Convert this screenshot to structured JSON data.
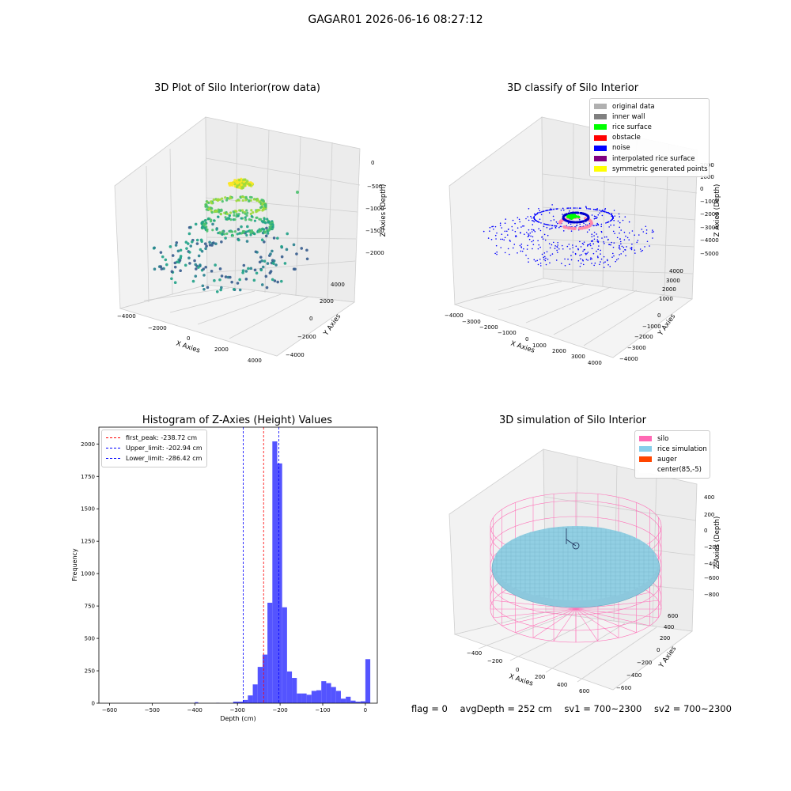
{
  "title": "GAGAR01 2026-06-16 08:27:12",
  "chart_data": [
    {
      "type": "scatter",
      "title": "3D Plot of Silo Interior(row data)",
      "xlabel": "X Axies",
      "ylabel": "Y Axies",
      "zlabel": "Z Axies (Depth)",
      "xticks": [
        "−4000",
        "−2000",
        "0",
        "2000",
        "4000"
      ],
      "yticks": [
        "−4000",
        "−2000",
        "0",
        "2000",
        "4000"
      ],
      "zticks": [
        "0",
        "−500",
        "−1000",
        "−1500",
        "−2000"
      ],
      "colormap": "viridis"
    },
    {
      "type": "scatter",
      "title": "3D classify of Silo Interior",
      "xlabel": "X Axies",
      "ylabel": "Y Axies",
      "zlabel": "Z Axies (Depth)",
      "xticks": [
        "−4000",
        "−3000",
        "−2000",
        "−1000",
        "0",
        "1000",
        "2000",
        "3000",
        "4000"
      ],
      "yticks": [
        "−4000",
        "−3000",
        "−2000",
        "−1000",
        "0",
        "1000",
        "2000",
        "3000",
        "4000"
      ],
      "zticks": [
        "2000",
        "1000",
        "0",
        "−1000",
        "−2000",
        "−3000",
        "−4000",
        "−5000"
      ],
      "legend": [
        {
          "label": "original data",
          "color": "#b0b0b0"
        },
        {
          "label": "inner wall",
          "color": "#808080"
        },
        {
          "label": "rice surface",
          "color": "#00ff00"
        },
        {
          "label": "obstacle",
          "color": "#ff0000"
        },
        {
          "label": "noise",
          "color": "#0000ff"
        },
        {
          "label": "interpolated rice surface",
          "color": "#800080"
        },
        {
          "label": "symmetric generated points",
          "color": "#ffff00"
        }
      ]
    },
    {
      "type": "bar",
      "title": "Histogram of Z-Axies (Height) Values",
      "xlabel": "Depth (cm)",
      "ylabel": "Frequency",
      "xlim": [
        -625,
        28
      ],
      "ylim": [
        0,
        2130
      ],
      "xticks": [
        -600,
        -500,
        -400,
        -300,
        -200,
        -100,
        0
      ],
      "xtick_labels": [
        "−600",
        "−500",
        "−400",
        "−300",
        "−200",
        "−100",
        "0"
      ],
      "yticks": [
        0,
        250,
        500,
        750,
        1000,
        1250,
        1500,
        1750,
        2000
      ],
      "bar_color": "#4b4bff",
      "bin_width": 8,
      "bins": [
        {
          "x": -400,
          "v": 8
        },
        {
          "x": -350,
          "v": 3
        },
        {
          "x": -326,
          "v": 12
        },
        {
          "x": -318,
          "v": 12
        },
        {
          "x": -310,
          "v": 25
        },
        {
          "x": -302,
          "v": 60
        },
        {
          "x": -294,
          "v": 145
        },
        {
          "x": -286,
          "v": 280
        },
        {
          "x": -278,
          "v": 375
        },
        {
          "x": -270,
          "v": 775
        },
        {
          "x": -262,
          "v": 2020
        },
        {
          "x": -254,
          "v": 1850
        },
        {
          "x": -246,
          "v": 740
        },
        {
          "x": -238,
          "v": 245
        },
        {
          "x": -230,
          "v": 195
        },
        {
          "x": -222,
          "v": 75
        },
        {
          "x": -214,
          "v": 75
        },
        {
          "x": -206,
          "v": 65
        },
        {
          "x": -198,
          "v": 95
        },
        {
          "x": -190,
          "v": 100
        },
        {
          "x": -182,
          "v": 170
        },
        {
          "x": -174,
          "v": 155
        },
        {
          "x": -166,
          "v": 125
        },
        {
          "x": -158,
          "v": 95
        },
        {
          "x": -150,
          "v": 35
        },
        {
          "x": -142,
          "v": 50
        },
        {
          "x": -134,
          "v": 20
        },
        {
          "x": -126,
          "v": 12
        },
        {
          "x": -118,
          "v": 15
        },
        {
          "x": -110,
          "v": 340
        }
      ],
      "vlines": [
        {
          "label": "first_peak: -238.72 cm",
          "x": -238.72,
          "color": "#ff0000"
        },
        {
          "label": "Upper_limit: -202.94 cm",
          "x": -202.94,
          "color": "#0000ff"
        },
        {
          "label": "Lower_limit: -286.42 cm",
          "x": -286.42,
          "color": "#0000ff"
        }
      ]
    },
    {
      "type": "scatter",
      "title": "3D simulation of Silo Interior",
      "xlabel": "X Axies",
      "ylabel": "Y Axies",
      "zlabel": "Z Axies (Depth)",
      "xticks": [
        "−400",
        "−200",
        "0",
        "200",
        "400",
        "600"
      ],
      "yticks": [
        "−600",
        "−400",
        "−200",
        "0",
        "200",
        "400",
        "600"
      ],
      "zticks": [
        "400",
        "200",
        "0",
        "−200",
        "−400",
        "−600",
        "−800"
      ],
      "legend": [
        {
          "label": "silo",
          "color": "#ff69b4"
        },
        {
          "label": "rice simulation",
          "color": "#87ceeb"
        },
        {
          "label": "auger",
          "color": "#ff4500"
        },
        {
          "label": "center(85,-5)",
          "color": "#ffffff"
        }
      ]
    }
  ],
  "footer": {
    "flag": "flag = 0",
    "avg": "avgDepth = 252 cm",
    "sv1": "sv1 = 700~2300",
    "sv2": "sv2 = 700~2300"
  }
}
